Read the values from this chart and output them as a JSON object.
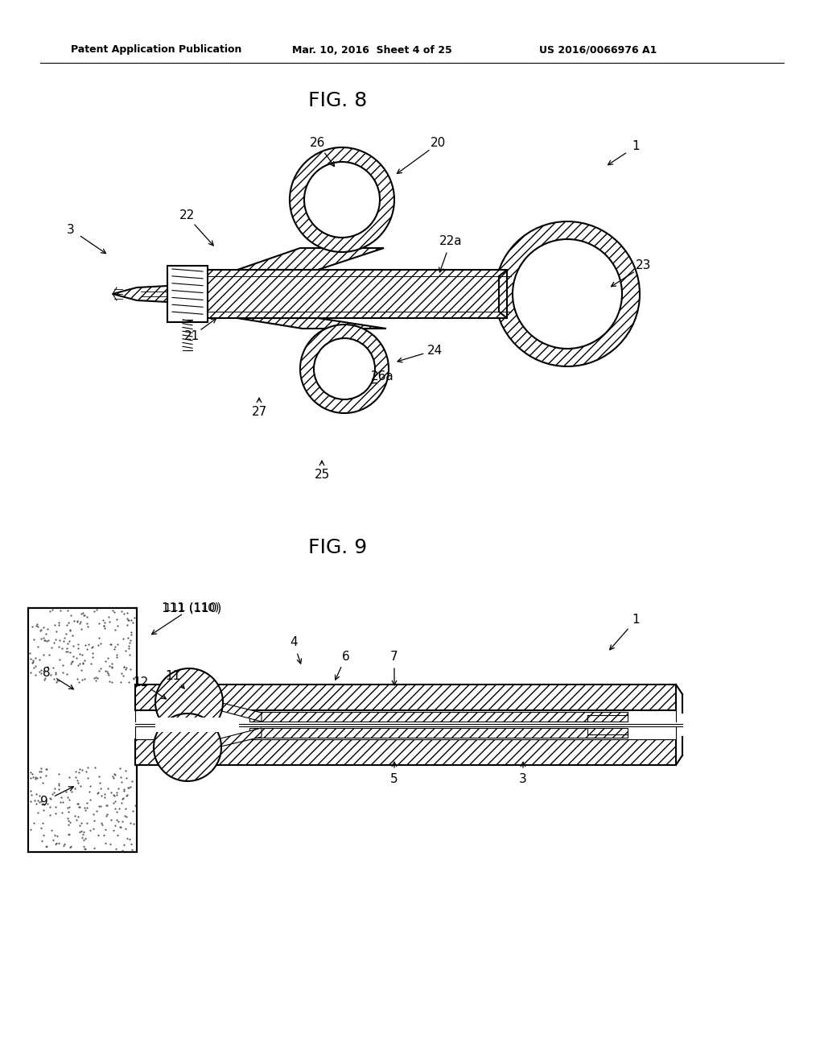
{
  "bg_color": "#ffffff",
  "text_color": "#000000",
  "header_left": "Patent Application Publication",
  "header_mid": "Mar. 10, 2016  Sheet 4 of 25",
  "header_right": "US 2016/0066976 A1",
  "fig8_title": "FIG. 8",
  "fig9_title": "FIG. 9",
  "line_color": "#000000",
  "line_width": 1.5
}
